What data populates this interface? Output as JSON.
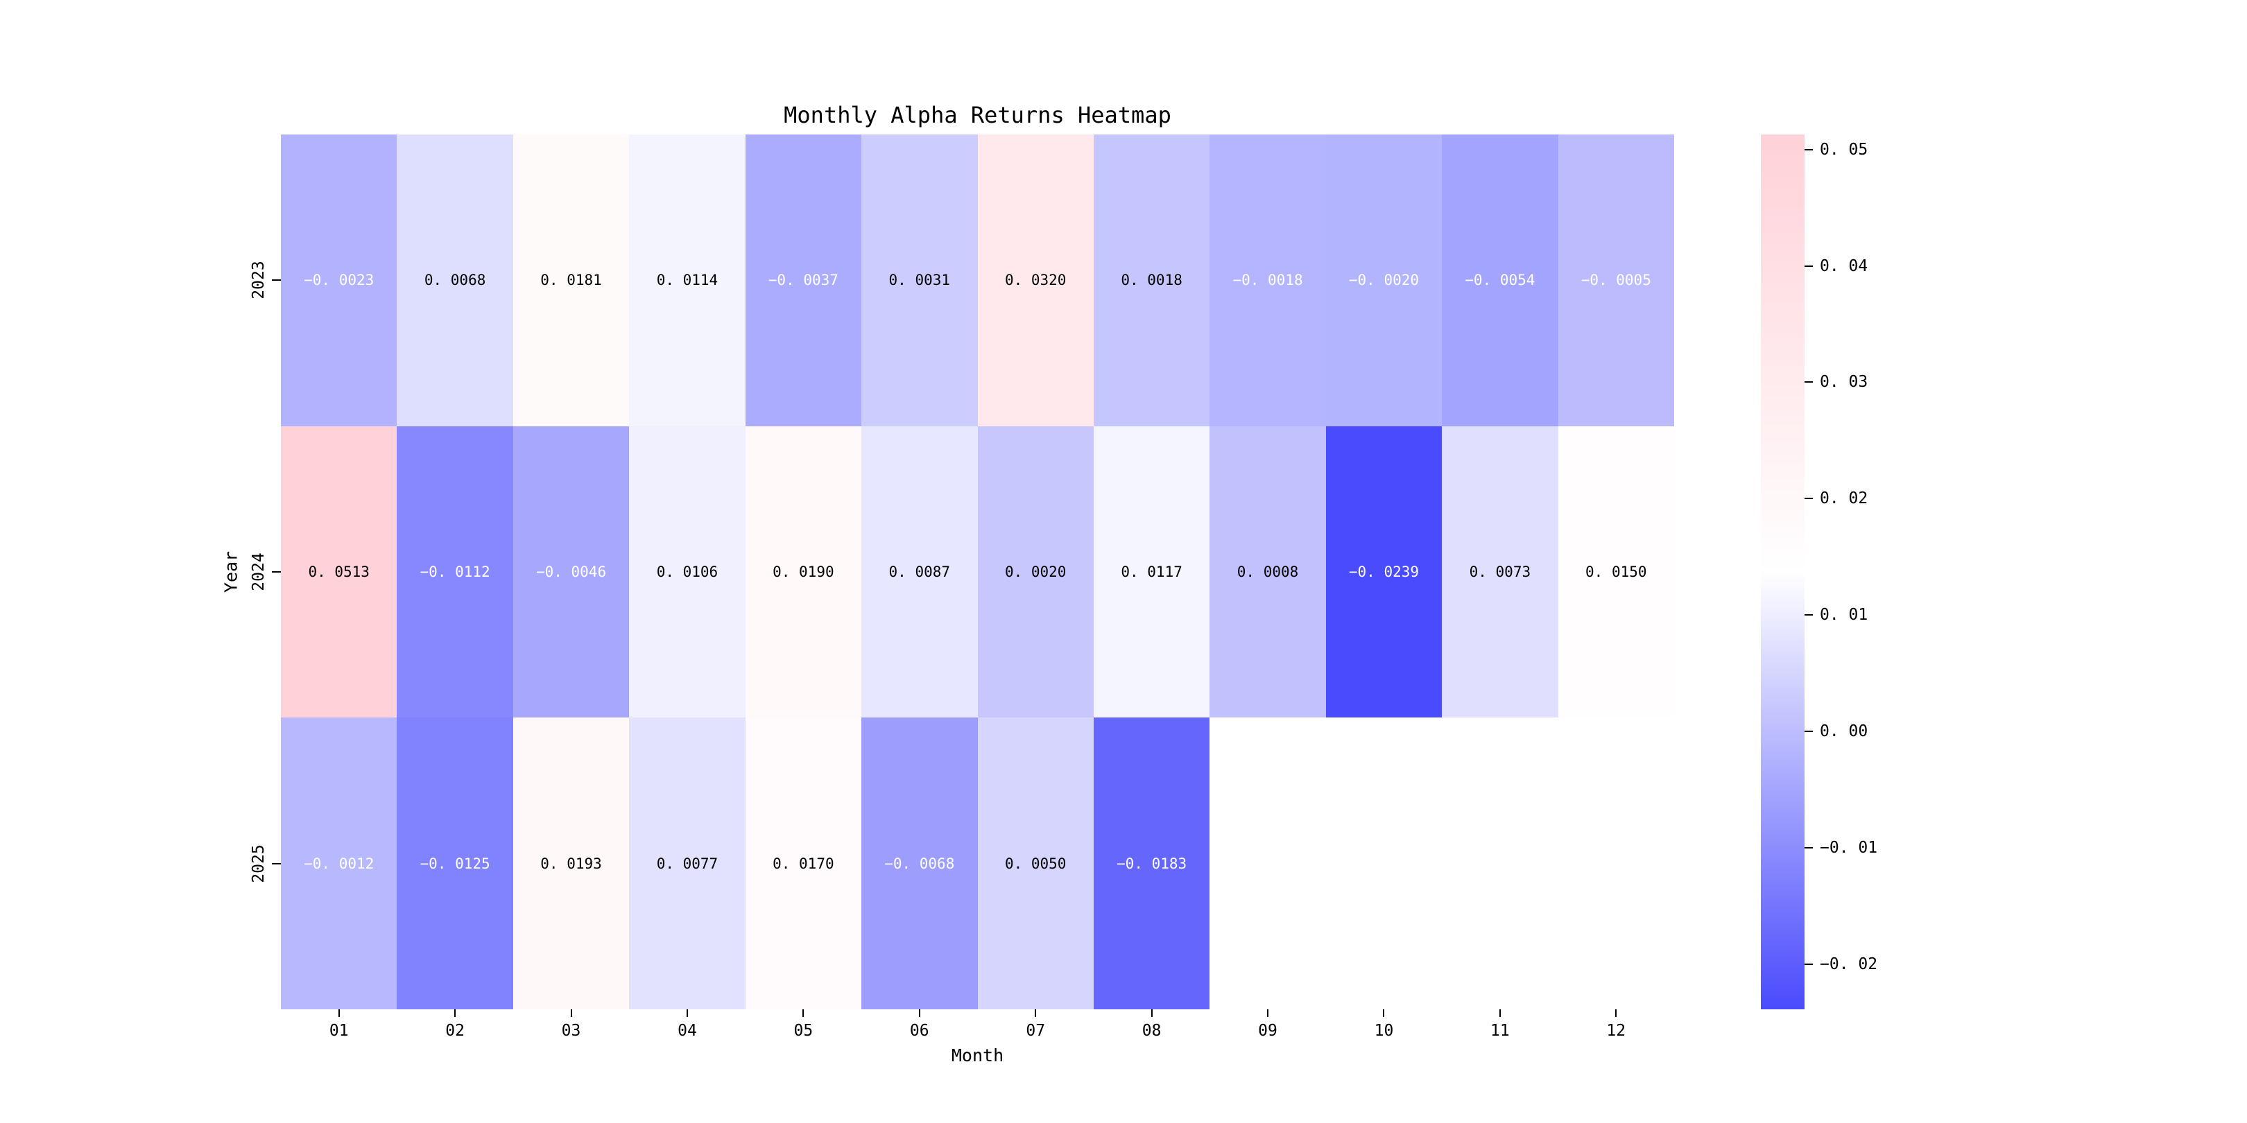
{
  "title": "Monthly Alpha Returns Heatmap",
  "axes": {
    "xlabel": "Month",
    "ylabel": "Year"
  },
  "chart_data": {
    "type": "heatmap",
    "title": "Monthly Alpha Returns Heatmap",
    "xlabel": "Month",
    "ylabel": "Year",
    "x": [
      "01",
      "02",
      "03",
      "04",
      "05",
      "06",
      "07",
      "08",
      "09",
      "10",
      "11",
      "12"
    ],
    "y": [
      "2023",
      "2024",
      "2025"
    ],
    "series": [
      {
        "name": "2023",
        "values": [
          -0.0023,
          0.0068,
          0.0181,
          0.0114,
          -0.0037,
          0.0031,
          0.032,
          0.0018,
          -0.0018,
          -0.002,
          -0.0054,
          -0.0005
        ]
      },
      {
        "name": "2024",
        "values": [
          0.0513,
          -0.0112,
          -0.0046,
          0.0106,
          0.019,
          0.0087,
          0.002,
          0.0117,
          0.0008,
          -0.0239,
          0.0073,
          0.015
        ]
      },
      {
        "name": "2025",
        "values": [
          -0.0012,
          -0.0125,
          0.0193,
          0.0077,
          0.017,
          -0.0068,
          0.005,
          -0.0183,
          null,
          null,
          null,
          null
        ]
      }
    ],
    "vmin": -0.0239,
    "vmax": 0.0513,
    "annotations": true,
    "annotation_decimals": 4,
    "colorbar_ticks": [
      0.05,
      0.04,
      0.03,
      0.02,
      0.01,
      0.0,
      -0.01,
      -0.02
    ],
    "colorbar_position": "right",
    "grid": false,
    "colors": {
      "scale_min_blue": "#4A4BFC",
      "scale_mid_white": "#FFFFFF",
      "scale_max_pink": "#FFD1D8",
      "annotation_negative": "#FFFFFF",
      "annotation_positive": "#000000",
      "background": "#FFFFFF"
    }
  }
}
